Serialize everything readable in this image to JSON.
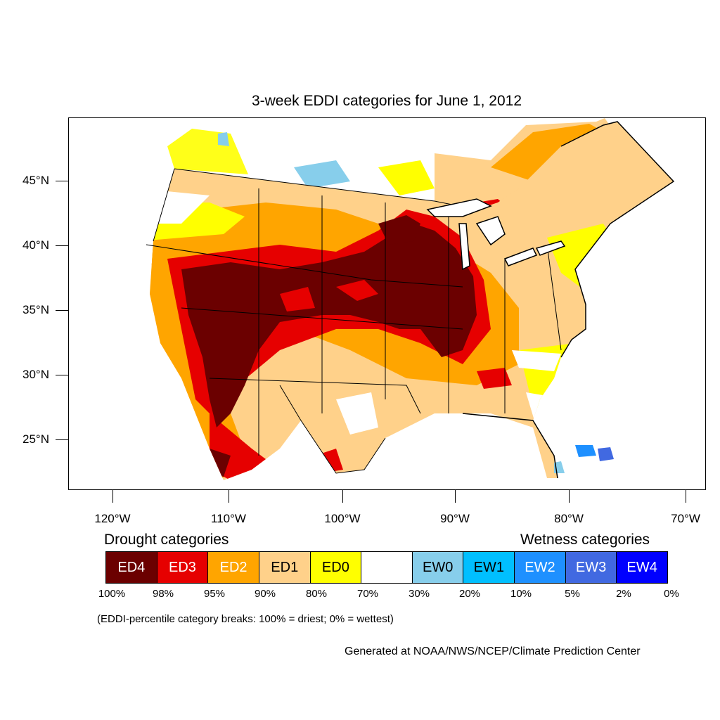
{
  "title": "3-week EDDI categories for June 1, 2012",
  "lat_labels": [
    "45°N",
    "40°N",
    "35°N",
    "30°N",
    "25°N"
  ],
  "lon_labels": [
    "120°W",
    "110°W",
    "100°W",
    "90°W",
    "80°W",
    "70°W"
  ],
  "legend": {
    "drought_title": "Drought categories",
    "wetness_title": "Wetness categories",
    "categories": [
      {
        "label": "ED4",
        "color": "#6b0000",
        "text_color": "#ffffff"
      },
      {
        "label": "ED3",
        "color": "#e60000",
        "text_color": "#ffffff"
      },
      {
        "label": "ED2",
        "color": "#ffa500",
        "text_color": "#ffffff"
      },
      {
        "label": "ED1",
        "color": "#ffd18a",
        "text_color": "#000000"
      },
      {
        "label": "ED0",
        "color": "#ffff00",
        "text_color": "#000000"
      },
      {
        "label": "",
        "color": "#ffffff",
        "text_color": "#000000"
      },
      {
        "label": "EW0",
        "color": "#87ceeb",
        "text_color": "#000000"
      },
      {
        "label": "EW1",
        "color": "#00bfff",
        "text_color": "#000000"
      },
      {
        "label": "EW2",
        "color": "#1e90ff",
        "text_color": "#ffffff"
      },
      {
        "label": "EW3",
        "color": "#4169e1",
        "text_color": "#ffffff"
      },
      {
        "label": "EW4",
        "color": "#0000ff",
        "text_color": "#ffffff"
      }
    ],
    "percentiles": [
      "100%",
      "98%",
      "95%",
      "90%",
      "80%",
      "70%",
      "30%",
      "20%",
      "10%",
      "5%",
      "2%",
      "0%"
    ],
    "note": "(EDDI-percentile category breaks: 100% = driest; 0% = wettest)"
  },
  "credit": "Generated at NOAA/NWS/NCEP/Climate Prediction Center"
}
